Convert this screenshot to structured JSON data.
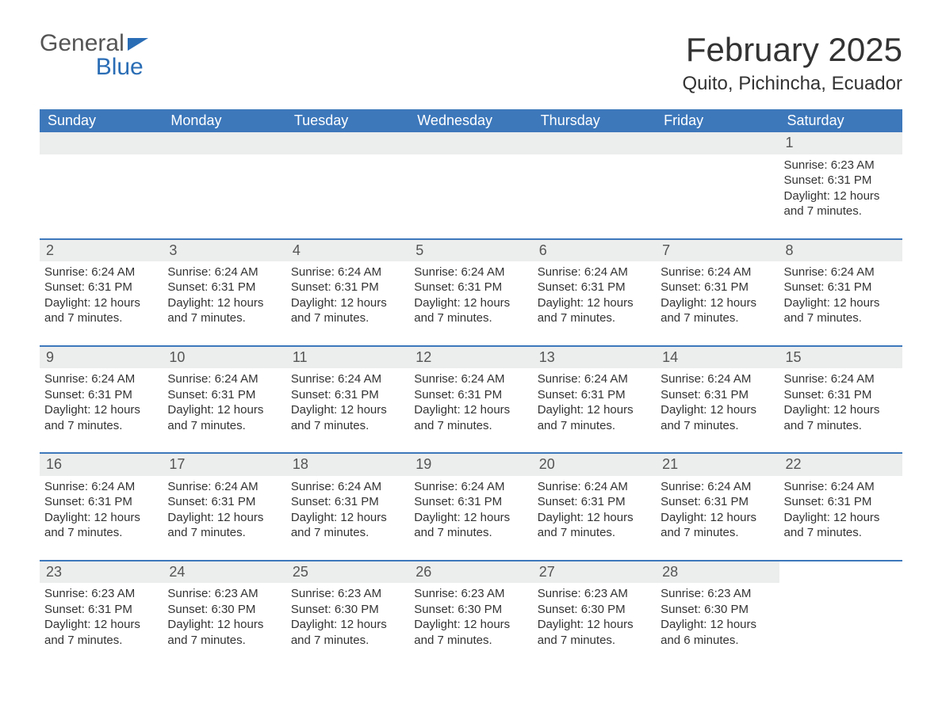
{
  "brand": {
    "word1": "General",
    "word2": "Blue"
  },
  "title": "February 2025",
  "location": "Quito, Pichincha, Ecuador",
  "colors": {
    "header_bg": "#3d78bb",
    "header_text": "#ffffff",
    "row_border": "#3d78bb",
    "daybar_bg": "#eceded",
    "text": "#333333",
    "brand_blue": "#2a6db5",
    "page_bg": "#ffffff"
  },
  "columns": [
    "Sunday",
    "Monday",
    "Tuesday",
    "Wednesday",
    "Thursday",
    "Friday",
    "Saturday"
  ],
  "weeks": [
    [
      {
        "empty": true
      },
      {
        "empty": true
      },
      {
        "empty": true
      },
      {
        "empty": true
      },
      {
        "empty": true
      },
      {
        "empty": true
      },
      {
        "day": "1",
        "sunrise": "Sunrise: 6:23 AM",
        "sunset": "Sunset: 6:31 PM",
        "dl1": "Daylight: 12 hours",
        "dl2": "and 7 minutes."
      }
    ],
    [
      {
        "day": "2",
        "sunrise": "Sunrise: 6:24 AM",
        "sunset": "Sunset: 6:31 PM",
        "dl1": "Daylight: 12 hours",
        "dl2": "and 7 minutes."
      },
      {
        "day": "3",
        "sunrise": "Sunrise: 6:24 AM",
        "sunset": "Sunset: 6:31 PM",
        "dl1": "Daylight: 12 hours",
        "dl2": "and 7 minutes."
      },
      {
        "day": "4",
        "sunrise": "Sunrise: 6:24 AM",
        "sunset": "Sunset: 6:31 PM",
        "dl1": "Daylight: 12 hours",
        "dl2": "and 7 minutes."
      },
      {
        "day": "5",
        "sunrise": "Sunrise: 6:24 AM",
        "sunset": "Sunset: 6:31 PM",
        "dl1": "Daylight: 12 hours",
        "dl2": "and 7 minutes."
      },
      {
        "day": "6",
        "sunrise": "Sunrise: 6:24 AM",
        "sunset": "Sunset: 6:31 PM",
        "dl1": "Daylight: 12 hours",
        "dl2": "and 7 minutes."
      },
      {
        "day": "7",
        "sunrise": "Sunrise: 6:24 AM",
        "sunset": "Sunset: 6:31 PM",
        "dl1": "Daylight: 12 hours",
        "dl2": "and 7 minutes."
      },
      {
        "day": "8",
        "sunrise": "Sunrise: 6:24 AM",
        "sunset": "Sunset: 6:31 PM",
        "dl1": "Daylight: 12 hours",
        "dl2": "and 7 minutes."
      }
    ],
    [
      {
        "day": "9",
        "sunrise": "Sunrise: 6:24 AM",
        "sunset": "Sunset: 6:31 PM",
        "dl1": "Daylight: 12 hours",
        "dl2": "and 7 minutes."
      },
      {
        "day": "10",
        "sunrise": "Sunrise: 6:24 AM",
        "sunset": "Sunset: 6:31 PM",
        "dl1": "Daylight: 12 hours",
        "dl2": "and 7 minutes."
      },
      {
        "day": "11",
        "sunrise": "Sunrise: 6:24 AM",
        "sunset": "Sunset: 6:31 PM",
        "dl1": "Daylight: 12 hours",
        "dl2": "and 7 minutes."
      },
      {
        "day": "12",
        "sunrise": "Sunrise: 6:24 AM",
        "sunset": "Sunset: 6:31 PM",
        "dl1": "Daylight: 12 hours",
        "dl2": "and 7 minutes."
      },
      {
        "day": "13",
        "sunrise": "Sunrise: 6:24 AM",
        "sunset": "Sunset: 6:31 PM",
        "dl1": "Daylight: 12 hours",
        "dl2": "and 7 minutes."
      },
      {
        "day": "14",
        "sunrise": "Sunrise: 6:24 AM",
        "sunset": "Sunset: 6:31 PM",
        "dl1": "Daylight: 12 hours",
        "dl2": "and 7 minutes."
      },
      {
        "day": "15",
        "sunrise": "Sunrise: 6:24 AM",
        "sunset": "Sunset: 6:31 PM",
        "dl1": "Daylight: 12 hours",
        "dl2": "and 7 minutes."
      }
    ],
    [
      {
        "day": "16",
        "sunrise": "Sunrise: 6:24 AM",
        "sunset": "Sunset: 6:31 PM",
        "dl1": "Daylight: 12 hours",
        "dl2": "and 7 minutes."
      },
      {
        "day": "17",
        "sunrise": "Sunrise: 6:24 AM",
        "sunset": "Sunset: 6:31 PM",
        "dl1": "Daylight: 12 hours",
        "dl2": "and 7 minutes."
      },
      {
        "day": "18",
        "sunrise": "Sunrise: 6:24 AM",
        "sunset": "Sunset: 6:31 PM",
        "dl1": "Daylight: 12 hours",
        "dl2": "and 7 minutes."
      },
      {
        "day": "19",
        "sunrise": "Sunrise: 6:24 AM",
        "sunset": "Sunset: 6:31 PM",
        "dl1": "Daylight: 12 hours",
        "dl2": "and 7 minutes."
      },
      {
        "day": "20",
        "sunrise": "Sunrise: 6:24 AM",
        "sunset": "Sunset: 6:31 PM",
        "dl1": "Daylight: 12 hours",
        "dl2": "and 7 minutes."
      },
      {
        "day": "21",
        "sunrise": "Sunrise: 6:24 AM",
        "sunset": "Sunset: 6:31 PM",
        "dl1": "Daylight: 12 hours",
        "dl2": "and 7 minutes."
      },
      {
        "day": "22",
        "sunrise": "Sunrise: 6:24 AM",
        "sunset": "Sunset: 6:31 PM",
        "dl1": "Daylight: 12 hours",
        "dl2": "and 7 minutes."
      }
    ],
    [
      {
        "day": "23",
        "sunrise": "Sunrise: 6:23 AM",
        "sunset": "Sunset: 6:31 PM",
        "dl1": "Daylight: 12 hours",
        "dl2": "and 7 minutes."
      },
      {
        "day": "24",
        "sunrise": "Sunrise: 6:23 AM",
        "sunset": "Sunset: 6:30 PM",
        "dl1": "Daylight: 12 hours",
        "dl2": "and 7 minutes."
      },
      {
        "day": "25",
        "sunrise": "Sunrise: 6:23 AM",
        "sunset": "Sunset: 6:30 PM",
        "dl1": "Daylight: 12 hours",
        "dl2": "and 7 minutes."
      },
      {
        "day": "26",
        "sunrise": "Sunrise: 6:23 AM",
        "sunset": "Sunset: 6:30 PM",
        "dl1": "Daylight: 12 hours",
        "dl2": "and 7 minutes."
      },
      {
        "day": "27",
        "sunrise": "Sunrise: 6:23 AM",
        "sunset": "Sunset: 6:30 PM",
        "dl1": "Daylight: 12 hours",
        "dl2": "and 7 minutes."
      },
      {
        "day": "28",
        "sunrise": "Sunrise: 6:23 AM",
        "sunset": "Sunset: 6:30 PM",
        "dl1": "Daylight: 12 hours",
        "dl2": "and 6 minutes."
      },
      {
        "empty": true,
        "noBar": true
      }
    ]
  ]
}
